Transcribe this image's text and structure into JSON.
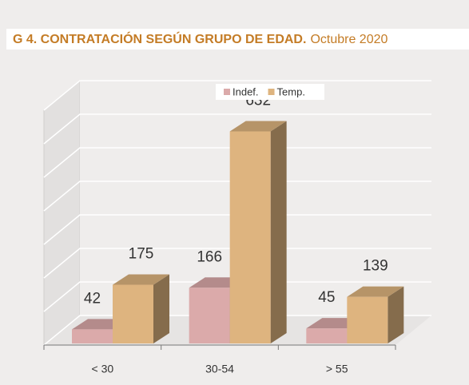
{
  "chart_data": {
    "type": "bar3d",
    "title": "G 4. CONTRATACIÓN  SEGÚN GRUPO DE EDAD.",
    "subtitle": "Octubre 2020",
    "categories": [
      "< 30",
      "30-54",
      "> 55"
    ],
    "series": [
      {
        "name": "Indef.",
        "color": "#dbaaaa",
        "values": [
          42,
          166,
          45
        ]
      },
      {
        "name": "Temp.",
        "color": "#deb47f",
        "values": [
          175,
          632,
          139
        ]
      }
    ],
    "ylim": [
      0,
      700
    ],
    "yticks": [
      0,
      100,
      200,
      300,
      400,
      500,
      600,
      700
    ],
    "grid": true,
    "legend": "top"
  }
}
